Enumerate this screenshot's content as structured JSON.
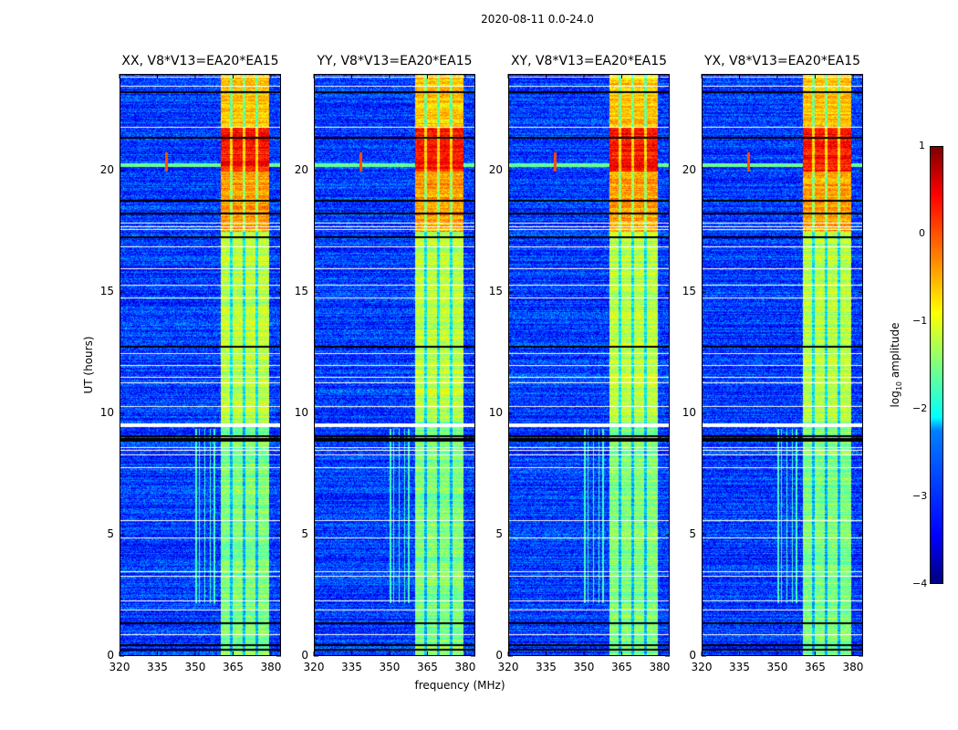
{
  "suptitle": "2020-08-11 0.0-24.0",
  "chart_data": {
    "type": "heatmap",
    "panels": [
      {
        "title": "XX, V8*V13=EA20*EA15",
        "spurious_lines": true
      },
      {
        "title": "YY, V8*V13=EA20*EA15",
        "spurious_lines": true
      },
      {
        "title": "XY, V8*V13=EA20*EA15",
        "spurious_lines": true
      },
      {
        "title": "YX, V8*V13=EA20*EA15",
        "spurious_lines": true
      }
    ],
    "xlabel": "frequency (MHz)",
    "ylabel": "UT (hours)",
    "xlim": [
      320,
      384
    ],
    "ylim": [
      0,
      24
    ],
    "xticks": [
      "320",
      "335",
      "350",
      "365",
      "380"
    ],
    "yticks": [
      "0",
      "5",
      "10",
      "15",
      "20"
    ],
    "colorbar": {
      "label_main": "log",
      "label_sub": "10",
      "label_rest": " amplitude",
      "range": [
        -4,
        1
      ],
      "ticks": [
        "1",
        "0",
        "−1",
        "−2",
        "−3",
        "−4"
      ],
      "colormap": "jet"
    },
    "background_level": -3.1,
    "rfi_band_mhz": [
      360,
      379
    ],
    "rfi_band_levels": [
      {
        "ut": [
          0,
          9.7
        ],
        "level": -1.5
      },
      {
        "ut": [
          9.7,
          17.5
        ],
        "level": -1.2
      },
      {
        "ut": [
          17.5,
          20.0
        ],
        "level": -0.4
      },
      {
        "ut": [
          20.0,
          21.8
        ],
        "level": 0.3
      },
      {
        "ut": [
          21.8,
          24
        ],
        "level": -0.6
      }
    ],
    "band_gaps_mhz": [
      364.2,
      369.3,
      374.3
    ],
    "flagged_rows_ut": [
      0.9,
      1.9,
      2.3,
      3.3,
      3.5,
      4.9,
      5.6,
      7.8,
      8.3,
      8.5,
      8.6,
      9.5,
      9.6,
      10.3,
      11.3,
      11.5,
      12.0,
      12.5,
      14.8,
      15.3,
      16.0,
      16.9,
      17.6,
      17.7,
      17.85,
      21.8,
      23.5,
      23.9
    ],
    "zero_rows_ut": [
      0.3,
      0.5,
      1.4,
      8.9,
      9.0,
      9.1,
      12.8,
      17.3,
      18.3,
      18.8,
      21.4,
      23.3
    ],
    "hotspot": {
      "freq": 338.5,
      "ut": [
        20.0,
        20.8
      ],
      "level": 0.0
    },
    "broadband_row": {
      "ut": 20.25,
      "level": -1.6
    }
  }
}
